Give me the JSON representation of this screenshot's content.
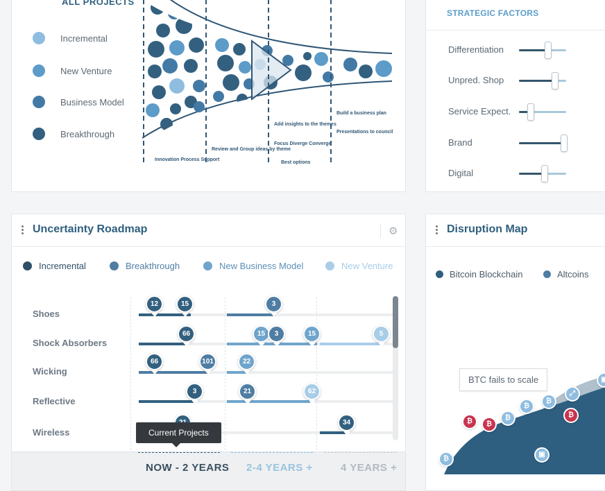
{
  "projects": {
    "title": "ALL PROJECTS",
    "legend": [
      {
        "label": "Incremental",
        "color": "#8fbde0"
      },
      {
        "label": "New Venture",
        "color": "#5d9bc9"
      },
      {
        "label": "Business Model",
        "color": "#437aa5"
      },
      {
        "label": "Breakthrough",
        "color": "#33607f"
      }
    ],
    "funnel_notes": {
      "col1": "Innovation Process Support",
      "col2": "Review and Group ideas by theme",
      "col3a": "Add insights to the themes",
      "col3b": "Focus Diverge Converge",
      "col3c": "Best options",
      "col4a": "Build a business plan",
      "col4b": "Presentations to council"
    }
  },
  "strategic": {
    "title": "STRATEGIC FACTORS",
    "sliders": [
      {
        "label": "Differentiation",
        "value": 0.62
      },
      {
        "label": "Unpred. Shop",
        "value": 0.76
      },
      {
        "label": "Service Expect.",
        "value": 0.25
      },
      {
        "label": "Brand",
        "value": 0.95
      },
      {
        "label": "Digital",
        "value": 0.55
      }
    ]
  },
  "roadmap": {
    "title": "Uncertainty Roadmap",
    "legend": [
      {
        "label": "Incremental",
        "color": "#2f4f67",
        "text_color": "#2f4f67"
      },
      {
        "label": "Breakthrough",
        "color": "#4f7da3",
        "text_color": "#4f7da3"
      },
      {
        "label": "New Business Model",
        "color": "#6fa5cc",
        "text_color": "#5c8fb6"
      },
      {
        "label": "New Venture",
        "color": "#a8cde8",
        "text_color": "#a8cde8"
      }
    ],
    "rows": [
      {
        "label": "Shoes",
        "pins": [
          "12",
          "15",
          "3"
        ]
      },
      {
        "label": "Shock Absorbers",
        "pins": [
          "66",
          "15",
          "3",
          "15",
          "5"
        ]
      },
      {
        "label": "Wicking",
        "pins": [
          "66",
          "101",
          "22"
        ]
      },
      {
        "label": "Reflective",
        "pins": [
          "3",
          "21",
          "62"
        ]
      },
      {
        "label": "Wireless",
        "pins": [
          "21",
          "34"
        ]
      }
    ],
    "tooltip": "Current Projects",
    "periods": [
      "NOW - 2 YEARS",
      "2-4 YEARS +",
      "4 YEARS +"
    ]
  },
  "disruption": {
    "title": "Disruption Map",
    "legend": [
      {
        "label": "Bitcoin Blockchain",
        "color": "#2f5f7f"
      },
      {
        "label": "Altcoins",
        "color": "#4f7da3"
      }
    ],
    "callout": "BTC fails to scale",
    "coin_symbol": "₿"
  }
}
